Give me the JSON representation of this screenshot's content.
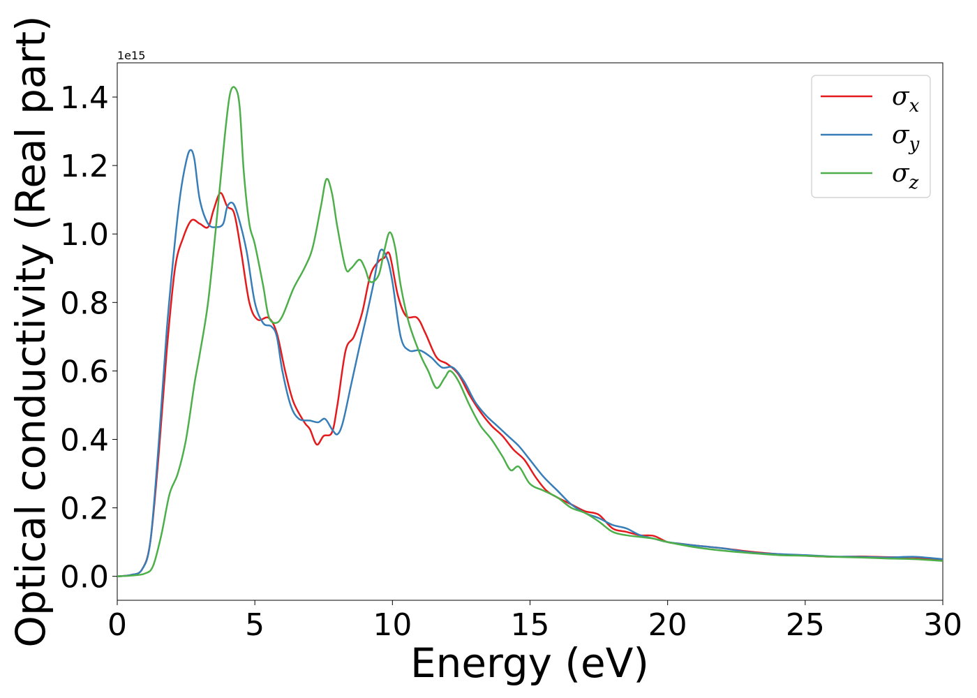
{
  "chart_data": {
    "type": "line",
    "xlabel": "Energy (eV)",
    "ylabel": "Optical conductivity (Real part)",
    "y_offset_text": "1e15",
    "y_multiplier": 1000000000000000.0,
    "xlim": [
      0,
      30
    ],
    "ylim": [
      -0.07,
      1.5
    ],
    "xticks": [
      0,
      5,
      10,
      15,
      20,
      25,
      30
    ],
    "xtick_labels": [
      "0",
      "5",
      "10",
      "15",
      "20",
      "25",
      "30"
    ],
    "yticks": [
      0.0,
      0.2,
      0.4,
      0.6,
      0.8,
      1.0,
      1.2,
      1.4
    ],
    "ytick_labels": [
      "0.0",
      "0.2",
      "0.4",
      "0.6",
      "0.8",
      "1.0",
      "1.2",
      "1.4"
    ],
    "grid": false,
    "legend_position": "top-right",
    "series": [
      {
        "name": "σ",
        "subscript": "x",
        "color": "#e41a1c",
        "x": [
          0,
          0.5,
          0.9,
          1.2,
          1.5,
          1.8,
          2.1,
          2.4,
          2.7,
          3.0,
          3.3,
          3.5,
          3.75,
          4.0,
          4.25,
          4.5,
          4.8,
          5.1,
          5.5,
          5.8,
          6.1,
          6.4,
          6.8,
          7.0,
          7.25,
          7.5,
          7.8,
          8.0,
          8.3,
          8.6,
          8.9,
          9.2,
          9.5,
          9.7,
          9.9,
          10.2,
          10.5,
          10.9,
          11.2,
          11.6,
          12.0,
          12.4,
          12.8,
          13.2,
          13.6,
          14.0,
          14.4,
          14.8,
          15.2,
          15.6,
          16.0,
          16.5,
          17.0,
          17.5,
          18.0,
          18.5,
          19.0,
          19.5,
          20.0,
          20.5,
          21.0,
          22.0,
          23.0,
          24.0,
          25.0,
          26.0,
          27.0,
          28.0,
          29.0,
          30.0
        ],
        "y": [
          0.0,
          0.004,
          0.02,
          0.1,
          0.35,
          0.66,
          0.9,
          0.99,
          1.04,
          1.03,
          1.02,
          1.07,
          1.12,
          1.08,
          1.06,
          0.95,
          0.8,
          0.75,
          0.755,
          0.71,
          0.6,
          0.51,
          0.45,
          0.43,
          0.385,
          0.41,
          0.42,
          0.5,
          0.66,
          0.7,
          0.77,
          0.88,
          0.92,
          0.93,
          0.94,
          0.82,
          0.76,
          0.755,
          0.71,
          0.64,
          0.62,
          0.59,
          0.53,
          0.48,
          0.44,
          0.41,
          0.37,
          0.34,
          0.29,
          0.25,
          0.23,
          0.21,
          0.19,
          0.18,
          0.14,
          0.13,
          0.12,
          0.118,
          0.1,
          0.095,
          0.09,
          0.082,
          0.072,
          0.065,
          0.06,
          0.057,
          0.058,
          0.056,
          0.055,
          0.045
        ]
      },
      {
        "name": "σ",
        "subscript": "y",
        "color": "#377eb8",
        "x": [
          0,
          0.5,
          0.9,
          1.2,
          1.5,
          1.8,
          2.1,
          2.3,
          2.5,
          2.65,
          2.8,
          3.0,
          3.3,
          3.6,
          3.85,
          4.0,
          4.2,
          4.4,
          4.7,
          5.0,
          5.3,
          5.6,
          5.8,
          6.0,
          6.3,
          6.6,
          7.0,
          7.3,
          7.55,
          7.8,
          8.0,
          8.2,
          8.5,
          8.8,
          9.0,
          9.3,
          9.55,
          9.8,
          10.0,
          10.3,
          10.6,
          11.0,
          11.4,
          11.8,
          12.2,
          12.6,
          13.0,
          13.4,
          13.8,
          14.2,
          14.6,
          15.0,
          15.5,
          16.0,
          16.5,
          17.0,
          17.5,
          18.0,
          18.5,
          19.0,
          19.5,
          20.0,
          21.0,
          22.0,
          23.0,
          24.0,
          25.0,
          26.0,
          27.0,
          28.0,
          29.0,
          30.0
        ],
        "y": [
          0.0,
          0.004,
          0.02,
          0.1,
          0.38,
          0.72,
          0.98,
          1.12,
          1.21,
          1.245,
          1.22,
          1.1,
          1.03,
          1.02,
          1.03,
          1.08,
          1.09,
          1.05,
          0.95,
          0.8,
          0.74,
          0.73,
          0.7,
          0.6,
          0.5,
          0.46,
          0.455,
          0.45,
          0.46,
          0.43,
          0.415,
          0.45,
          0.56,
          0.67,
          0.74,
          0.85,
          0.95,
          0.93,
          0.86,
          0.7,
          0.66,
          0.66,
          0.64,
          0.61,
          0.61,
          0.57,
          0.51,
          0.47,
          0.44,
          0.41,
          0.38,
          0.34,
          0.29,
          0.25,
          0.21,
          0.185,
          0.17,
          0.15,
          0.14,
          0.12,
          0.11,
          0.1,
          0.09,
          0.082,
          0.07,
          0.065,
          0.062,
          0.058,
          0.057,
          0.055,
          0.057,
          0.05
        ]
      },
      {
        "name": "σ",
        "subscript": "z",
        "color": "#4daf4a",
        "x": [
          0,
          0.5,
          1.0,
          1.3,
          1.6,
          1.9,
          2.2,
          2.5,
          2.8,
          3.0,
          3.3,
          3.6,
          3.9,
          4.1,
          4.3,
          4.45,
          4.6,
          4.8,
          5.0,
          5.3,
          5.5,
          5.75,
          6.0,
          6.4,
          6.8,
          7.1,
          7.4,
          7.6,
          7.8,
          8.0,
          8.3,
          8.5,
          8.8,
          9.0,
          9.2,
          9.5,
          9.7,
          9.9,
          10.1,
          10.3,
          10.6,
          11.0,
          11.3,
          11.6,
          11.9,
          12.1,
          12.4,
          12.8,
          13.2,
          13.6,
          14.0,
          14.3,
          14.6,
          15.0,
          15.5,
          16.0,
          16.5,
          17.0,
          17.5,
          18.0,
          18.5,
          19.0,
          19.5,
          20.0,
          21.0,
          22.0,
          23.0,
          24.0,
          25.0,
          26.0,
          27.0,
          28.0,
          29.0,
          30.0
        ],
        "y": [
          0.0,
          0.002,
          0.008,
          0.03,
          0.12,
          0.24,
          0.3,
          0.4,
          0.56,
          0.65,
          0.8,
          1.03,
          1.28,
          1.41,
          1.425,
          1.37,
          1.18,
          1.03,
          0.97,
          0.85,
          0.76,
          0.74,
          0.76,
          0.84,
          0.9,
          0.96,
          1.08,
          1.16,
          1.12,
          1.02,
          0.9,
          0.9,
          0.925,
          0.9,
          0.86,
          0.88,
          0.95,
          1.005,
          0.96,
          0.85,
          0.74,
          0.65,
          0.6,
          0.55,
          0.58,
          0.6,
          0.57,
          0.5,
          0.44,
          0.4,
          0.35,
          0.31,
          0.32,
          0.27,
          0.25,
          0.23,
          0.2,
          0.185,
          0.16,
          0.13,
          0.12,
          0.115,
          0.11,
          0.1,
          0.085,
          0.075,
          0.068,
          0.062,
          0.06,
          0.057,
          0.055,
          0.052,
          0.05,
          0.045
        ]
      }
    ]
  }
}
